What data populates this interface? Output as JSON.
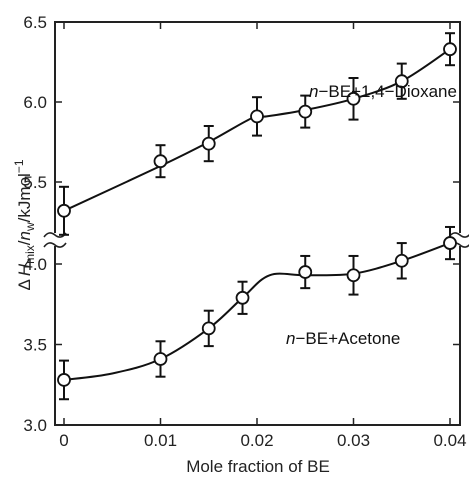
{
  "chart_data": {
    "type": "scatter",
    "xlabel": "Mole fraction of BE",
    "ylabel": {
      "prefix": "Δ",
      "symbol": "H",
      "sub": "mix",
      "slash1": "/",
      "n": "n",
      "nsub": "w",
      "unit": "/kJmol",
      "exp": "−1"
    },
    "x_ticks": [
      "0",
      "0.01",
      "0.02",
      "0.03",
      "0.04"
    ],
    "xlim": [
      0,
      0.04
    ],
    "y_axis_broken": true,
    "upper_panel": {
      "ylim": [
        5.2,
        6.5
      ],
      "y_ticks": [
        "5.5",
        "6.0",
        "6.5"
      ],
      "tick_values": [
        5.5,
        6.0,
        6.5
      ]
    },
    "lower_panel": {
      "ylim": [
        3.0,
        4.25
      ],
      "y_ticks": [
        "3.0",
        "3.5",
        "4.0"
      ],
      "tick_values": [
        3.0,
        3.5,
        4.0
      ]
    },
    "series": [
      {
        "name": "n−BE+1,4−Dioxane",
        "name_italic": "n",
        "name_rest": "−BE+1,4−Dioxane",
        "panel": "upper",
        "x": [
          0,
          0.01,
          0.015,
          0.02,
          0.025,
          0.03,
          0.035,
          0.04
        ],
        "y": [
          5.32,
          5.63,
          5.74,
          5.91,
          5.94,
          6.02,
          6.13,
          6.33
        ],
        "err": [
          0.15,
          0.1,
          0.11,
          0.12,
          0.1,
          0.13,
          0.11,
          0.1
        ],
        "fit_x": [
          0,
          0.01,
          0.015,
          0.0195,
          0.021,
          0.025,
          0.03,
          0.035,
          0.04
        ],
        "fit_y": [
          5.32,
          5.6,
          5.75,
          5.9,
          5.91,
          5.95,
          6.02,
          6.13,
          6.33
        ]
      },
      {
        "name": "n−BE+Acetone",
        "name_italic": "n",
        "name_rest": "−BE+Acetone",
        "panel": "lower",
        "x": [
          0,
          0.01,
          0.015,
          0.0185,
          0.025,
          0.03,
          0.035,
          0.04
        ],
        "y": [
          3.28,
          3.41,
          3.6,
          3.79,
          3.95,
          3.93,
          4.02,
          4.13
        ],
        "err": [
          0.12,
          0.11,
          0.11,
          0.1,
          0.1,
          0.12,
          0.11,
          0.1
        ],
        "fit_x": [
          0,
          0.005,
          0.01,
          0.015,
          0.0185,
          0.0213,
          0.025,
          0.03,
          0.035,
          0.04
        ],
        "fit_y": [
          3.28,
          3.32,
          3.41,
          3.6,
          3.79,
          3.93,
          3.93,
          3.94,
          4.02,
          4.13
        ]
      }
    ]
  }
}
